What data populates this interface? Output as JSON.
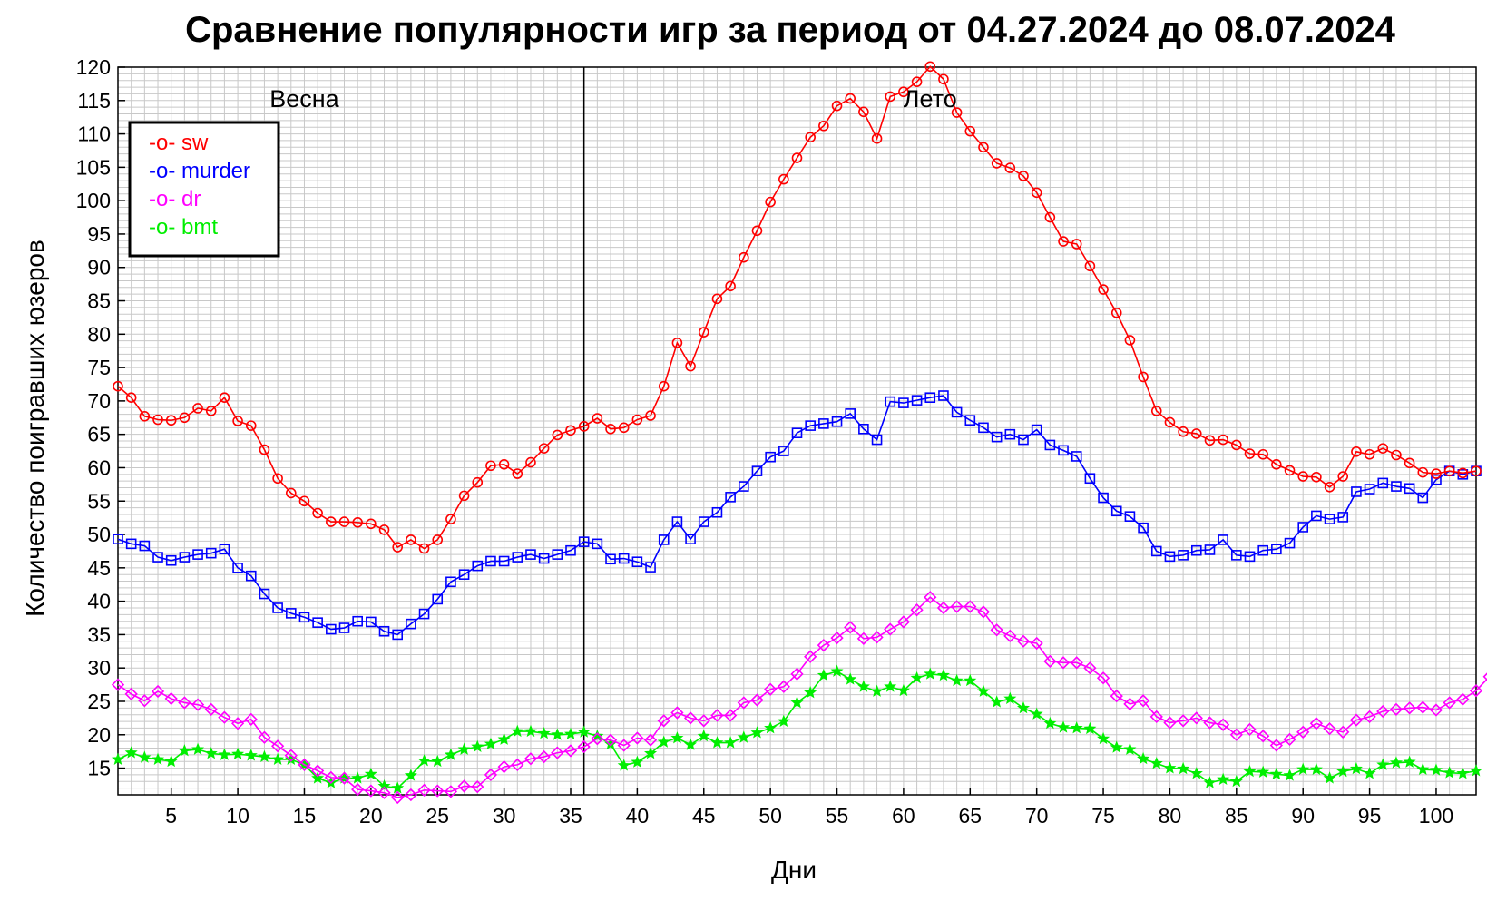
{
  "chart_data": {
    "type": "line",
    "title": "Сравнение популярности игр за период от 04.27.2024 до 08.07.2024",
    "xlabel": "Дни",
    "ylabel": "Количество поигравших юзеров",
    "xlim": [
      1,
      103
    ],
    "ylim": [
      11,
      120
    ],
    "xticks": [
      5,
      10,
      15,
      20,
      25,
      30,
      35,
      40,
      45,
      50,
      55,
      60,
      65,
      70,
      75,
      80,
      85,
      90,
      95,
      100
    ],
    "yticks": [
      15,
      20,
      25,
      30,
      35,
      40,
      45,
      50,
      55,
      60,
      65,
      70,
      75,
      80,
      85,
      90,
      95,
      100,
      105,
      110,
      115,
      120
    ],
    "grid": true,
    "legend_position": "top-left",
    "vline_x": 36,
    "annotations": [
      {
        "text": "Весна",
        "x": 15,
        "y": 114
      },
      {
        "text": "Лето",
        "x": 62,
        "y": 114
      }
    ],
    "series": [
      {
        "name": "sw",
        "legend": "-o- sw",
        "color": "#ff0000",
        "marker": "circle",
        "values": [
          72.2,
          70.5,
          67.7,
          67.2,
          67.1,
          67.5,
          68.9,
          68.5,
          70.5,
          67,
          66.3,
          62.7,
          58.4,
          56.2,
          55,
          53.2,
          51.9,
          51.9,
          51.8,
          51.6,
          50.7,
          48.1,
          49.2,
          47.9,
          49.2,
          52.3,
          55.8,
          57.8,
          60.3,
          60.5,
          59.1,
          60.8,
          62.9,
          64.9,
          65.6,
          66.2,
          67.4,
          65.8,
          66,
          67.2,
          67.8,
          72.2,
          78.7,
          75.2,
          80.3,
          85.3,
          87.2,
          91.5,
          95.5,
          99.8,
          103.2,
          106.4,
          109.5,
          111.2,
          114.2,
          115.3,
          113.3,
          109.3,
          115.6,
          116.3,
          117.8,
          120.1,
          118.2,
          113.2,
          110.4,
          108,
          105.6,
          104.9,
          103.7,
          101.2,
          97.5,
          93.9,
          93.5,
          90.2,
          86.7,
          83.2,
          79.1,
          73.6,
          68.5,
          66.8,
          65.4,
          65.1,
          64.1,
          64.2,
          63.4,
          62.1,
          62,
          60.5,
          59.6,
          58.7,
          58.6,
          57.1,
          58.7,
          62.4,
          62,
          62.9,
          61.9,
          60.7,
          59.3,
          59.1,
          59.5,
          59.2,
          59.5
        ]
      },
      {
        "name": "murder",
        "legend": "-o- murder",
        "color": "#0000ff",
        "marker": "square",
        "values": [
          49.3,
          48.6,
          48.3,
          46.6,
          46.1,
          46.6,
          47,
          47.2,
          47.8,
          45,
          43.8,
          41.1,
          39,
          38.2,
          37.6,
          36.8,
          35.8,
          36,
          37,
          36.9,
          35.5,
          35,
          36.6,
          38.1,
          40.3,
          42.9,
          44,
          45.3,
          46,
          46,
          46.6,
          47,
          46.4,
          47,
          47.6,
          48.9,
          48.6,
          46.3,
          46.4,
          45.9,
          45.1,
          49.2,
          51.9,
          49.3,
          51.9,
          53.3,
          55.6,
          57.2,
          59.5,
          61.6,
          62.5,
          65.2,
          66.3,
          66.6,
          66.9,
          68.1,
          65.8,
          64.2,
          69.9,
          69.7,
          70.1,
          70.5,
          70.8,
          68.3,
          67.1,
          66,
          64.6,
          65,
          64.2,
          65.7,
          63.4,
          62.6,
          61.7,
          58.4,
          55.5,
          53.5,
          52.7,
          51,
          47.5,
          46.7,
          46.9,
          47.6,
          47.7,
          49.2,
          46.9,
          46.7,
          47.6,
          47.8,
          48.7,
          51.1,
          52.8,
          52.3,
          52.6,
          56.4,
          56.8,
          57.7,
          57.2,
          56.9,
          55.5,
          58.2,
          59.5,
          59,
          59.5
        ]
      },
      {
        "name": "dr",
        "legend": "-o- dr",
        "color": "#ff00ff",
        "marker": "diamond",
        "values": [
          27.5,
          26.1,
          25.1,
          26.5,
          25.4,
          24.8,
          24.5,
          23.8,
          22.6,
          21.7,
          22.3,
          19.6,
          18.3,
          16.9,
          15.5,
          14.6,
          13.6,
          13.5,
          11.8,
          11.6,
          11.3,
          10.6,
          11,
          11.7,
          11.6,
          11.5,
          12.3,
          12.2,
          14,
          15.2,
          15.5,
          16.4,
          16.7,
          17.3,
          17.6,
          18.2,
          19.4,
          19.2,
          18.4,
          19.5,
          19.2,
          22.1,
          23.3,
          22.5,
          22.1,
          22.9,
          22.9,
          24.8,
          25.2,
          26.8,
          27.2,
          29.1,
          31.7,
          33.4,
          34.5,
          36.1,
          34.4,
          34.6,
          35.8,
          36.9,
          38.7,
          40.6,
          39,
          39.2,
          39.2,
          38.4,
          35.7,
          34.8,
          34,
          33.7,
          31,
          30.8,
          30.8,
          30,
          28.5,
          25.8,
          24.6,
          25.1,
          22.7,
          21.8,
          22.1,
          22.5,
          21.8,
          21.5,
          20,
          20.8,
          19.8,
          18.4,
          19.3,
          20.4,
          21.7,
          20.9,
          20.4,
          22.2,
          22.7,
          23.5,
          23.8,
          24,
          24.1,
          23.7,
          24.8,
          25.3,
          26.6,
          28.7
        ]
      },
      {
        "name": "bmt",
        "legend": "-o- bmt",
        "color": "#00ee00",
        "marker": "star",
        "values": [
          16.3,
          17.3,
          16.6,
          16.3,
          16,
          17.6,
          17.8,
          17.2,
          17,
          17.1,
          16.9,
          16.7,
          16.3,
          16.3,
          15.5,
          13.5,
          12.8,
          13.5,
          13.5,
          14.1,
          12.3,
          12,
          13.9,
          16.1,
          16,
          17,
          17.8,
          18.2,
          18.6,
          19.3,
          20.5,
          20.5,
          20.2,
          20,
          20.1,
          20.4,
          19.8,
          18.6,
          15.4,
          15.9,
          17.2,
          18.9,
          19.5,
          18.5,
          19.8,
          18.8,
          18.8,
          19.6,
          20.3,
          21,
          22,
          24.8,
          26.3,
          28.9,
          29.5,
          28.3,
          27.2,
          26.5,
          27.2,
          26.6,
          28.5,
          29.1,
          28.9,
          28.1,
          28.1,
          26.5,
          24.9,
          25.4,
          24,
          23.1,
          21.7,
          21.1,
          21,
          20.9,
          19.4,
          18.1,
          17.8,
          16.4,
          15.7,
          15,
          14.9,
          14.2,
          12.8,
          13.3,
          13,
          14.5,
          14.4,
          14.1,
          13.9,
          14.8,
          14.8,
          13.5,
          14.5,
          14.9,
          14.2,
          15.5,
          15.8,
          15.9,
          14.8,
          14.7,
          14.3,
          14.2,
          14.6
        ]
      }
    ]
  }
}
